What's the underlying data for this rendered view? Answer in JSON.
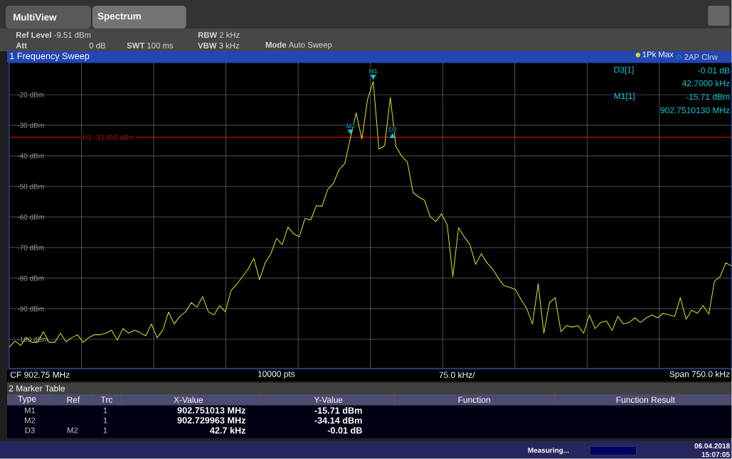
{
  "chart_data": {
    "type": "line",
    "title": "1 Frequency Sweep",
    "categories": [
      null,
      null,
      null,
      null,
      null,
      null,
      null,
      null,
      null,
      null,
      null,
      null,
      null,
      null,
      null,
      null,
      null,
      null,
      null,
      null,
      null,
      null,
      null,
      null,
      null,
      null,
      null,
      null,
      null,
      null,
      null,
      null,
      null,
      null,
      null,
      null,
      null,
      null,
      null,
      null,
      null,
      null,
      null,
      null,
      null,
      null,
      null,
      null,
      null,
      null,
      null,
      null,
      null,
      null,
      null,
      null,
      null,
      null,
      null,
      null,
      null,
      null,
      null,
      null,
      null,
      null,
      null,
      null,
      null,
      null,
      null,
      null,
      null,
      null,
      null,
      null,
      null,
      null,
      null,
      null,
      null,
      null,
      null,
      null,
      null,
      null,
      null,
      null,
      null,
      null,
      null,
      null,
      null,
      null,
      null,
      null,
      null,
      null,
      null,
      null,
      null,
      null,
      null,
      null,
      null,
      null,
      null,
      null,
      null,
      null,
      null,
      null,
      null,
      null,
      null,
      null,
      null,
      null,
      null,
      null,
      null,
      null,
      null,
      null,
      null,
      null,
      null,
      null
    ],
    "series": [
      {
        "name": "1Pk Max",
        "color": "#d8d820",
        "values": [
          -102.6,
          -100.5,
          -102,
          -99.5,
          -101,
          -101,
          -97.5,
          -101,
          -101,
          -98,
          -100.8,
          -99.5,
          -98.5,
          -101,
          -99.4,
          -98.5,
          -98.5,
          -98,
          -97,
          -100.3,
          -96.5,
          -98,
          -97,
          -97.8,
          -98.9,
          -95,
          -99.5,
          -97,
          -91.1,
          -95,
          -92.5,
          -91,
          -88,
          -89.5,
          -86,
          -91,
          -92,
          -89,
          -91,
          -84.1,
          -82,
          -79.5,
          -77,
          -73.5,
          -80.5,
          -75,
          -72,
          -67,
          -69,
          -63.3,
          -65.5,
          -66.5,
          -60.5,
          -61,
          -56.3,
          -56.5,
          -51,
          -49,
          -44.5,
          -42.5,
          -34.1,
          -26,
          -34.5,
          -21.6,
          -15.7,
          -37.8,
          -36.7,
          -20.9,
          -37,
          -40.1,
          -42,
          -52,
          -53.5,
          -54.5,
          -59.8,
          -61.5,
          -59,
          -62.5,
          -79.5,
          -63.5,
          -66.5,
          -69,
          -75.5,
          -72,
          -75,
          -77,
          -80,
          -82.5,
          -83,
          -83.7,
          -87,
          -90,
          -95,
          -81.8,
          -98,
          -88,
          -86.4,
          -97.5,
          -95.5,
          -96,
          -95.5,
          -98,
          -92,
          -96.5,
          -94.5,
          -94,
          -97.1,
          -92.5,
          -95,
          -94.5,
          -93,
          -94.5,
          -93,
          -92,
          -93,
          -91.5,
          -92,
          -92.5,
          -86.4,
          -93.4,
          -90.5,
          -91.5,
          -89,
          -91.8,
          -81,
          -79.5,
          -75,
          -76
        ]
      }
    ],
    "ylim": [
      -109.51,
      -9.51
    ],
    "yticks": [
      {
        "value": -20,
        "label": "-20 dBm"
      },
      {
        "value": -30,
        "label": "-30 dBm"
      },
      {
        "value": -40,
        "label": "-40 dBm"
      },
      {
        "value": -50,
        "label": "-50 dBm"
      },
      {
        "value": -60,
        "label": "-60 dBm"
      },
      {
        "value": -70,
        "label": "-70 dBm"
      },
      {
        "value": -80,
        "label": "-80 dBm"
      },
      {
        "value": -90,
        "label": "-90 dBm"
      },
      {
        "value": -100,
        "label": "-100 dBm"
      }
    ],
    "grid": true,
    "legend": "top right",
    "ref_lines": [
      {
        "axis": "y",
        "value": -33.95,
        "label": "H1 -33.950 dBm",
        "color": "#c01010"
      }
    ],
    "annotations": [
      "MultiView",
      "Spectrum",
      "**Ref Level** -9.51 dBm",
      "Att",
      "0 dB",
      "**SWT** 100 ms",
      "**RBW** 2 kHz",
      "**VBW** 3 kHz",
      "**Mode** Auto Sweep",
      "2AP Clrw",
      "D3[1]",
      "-0.01 dB",
      "42.7000 kHz",
      "M1[1]",
      "-15.71 dBm",
      "902.7510130 MHz",
      "CF 902.75 MHz",
      "10000 pts",
      "75.0 kHz/",
      "Span 750.0 kHz",
      "2 Marker Table",
      "Type",
      "Ref",
      "Trc",
      "X-Value",
      "Y-Value",
      "Function",
      "Function Result",
      "M1",
      "1",
      "902.751013 MHz",
      "-15.71 dBm",
      "M2",
      "1",
      "902.729963 MHz",
      "-34.14 dBm",
      "D3",
      "M2",
      "1",
      "42.7 kHz",
      "-0.01 dB",
      "Measuring...",
      "06.04.2018",
      "15:07:05",
      "M1",
      "M2",
      "D3"
    ]
  }
}
